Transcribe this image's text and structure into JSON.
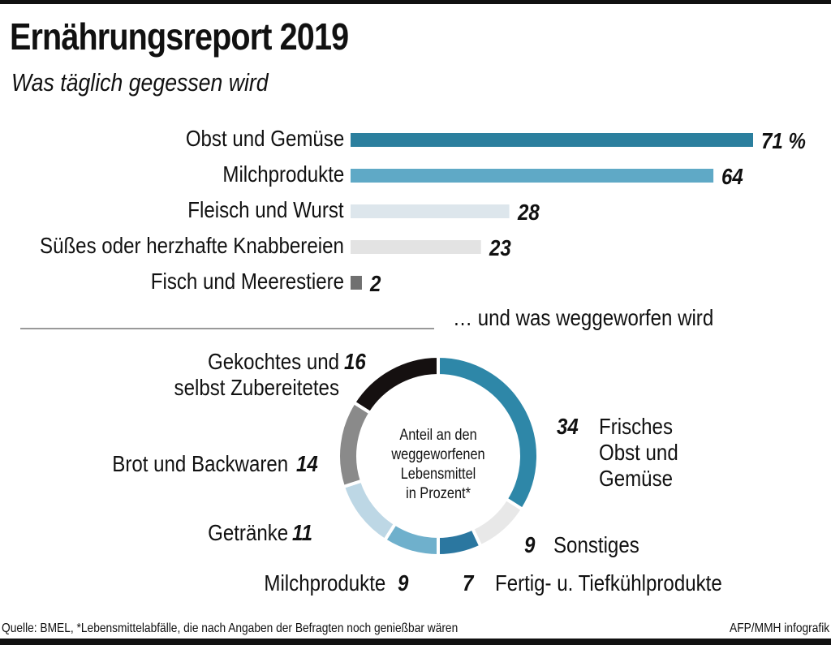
{
  "title": "Ernährungsreport 2019",
  "subtitle": "Was täglich gegessen wird",
  "section2_title": "… und was weggeworfen wird",
  "footer": {
    "source": "Quelle: BMEL, *Lebensmittelabfälle, die nach Angaben der Befragten noch genießbar wären",
    "credit": "AFP/MMH infografik"
  },
  "chart_data": [
    {
      "type": "bar",
      "orientation": "horizontal",
      "unit": "%",
      "categories": [
        "Obst und Gemüse",
        "Milchprodukte",
        "Fleisch und Wurst",
        "Süßes oder herzhafte Knabbereien",
        "Fisch und Meerestiere"
      ],
      "values": [
        71,
        64,
        28,
        23,
        2
      ],
      "labels": [
        "71 %",
        "64",
        "28",
        "23",
        "2"
      ],
      "colors": [
        "#2b7f9e",
        "#5fa9c6",
        "#dde6ec",
        "#e3e3e3",
        "#707070"
      ]
    },
    {
      "type": "pie",
      "donut": true,
      "center_label": [
        "Anteil an den",
        "weggeworfenen",
        "Lebensmittel",
        "in Prozent*"
      ],
      "categories": [
        "Frisches Obst und Gemüse",
        "Sonstiges",
        "Fertig- u. Tiefkühlprodukte",
        "Milchprodukte",
        "Getränke",
        "Brot und Backwaren",
        "Gekochtes und selbst Zubereitetes"
      ],
      "values": [
        34,
        9,
        7,
        9,
        11,
        14,
        16
      ],
      "colors": [
        "#2e87a8",
        "#e8e8e8",
        "#2b77a0",
        "#6fb0cc",
        "#bdd7e5",
        "#8a8a8a",
        "#151010"
      ]
    }
  ]
}
